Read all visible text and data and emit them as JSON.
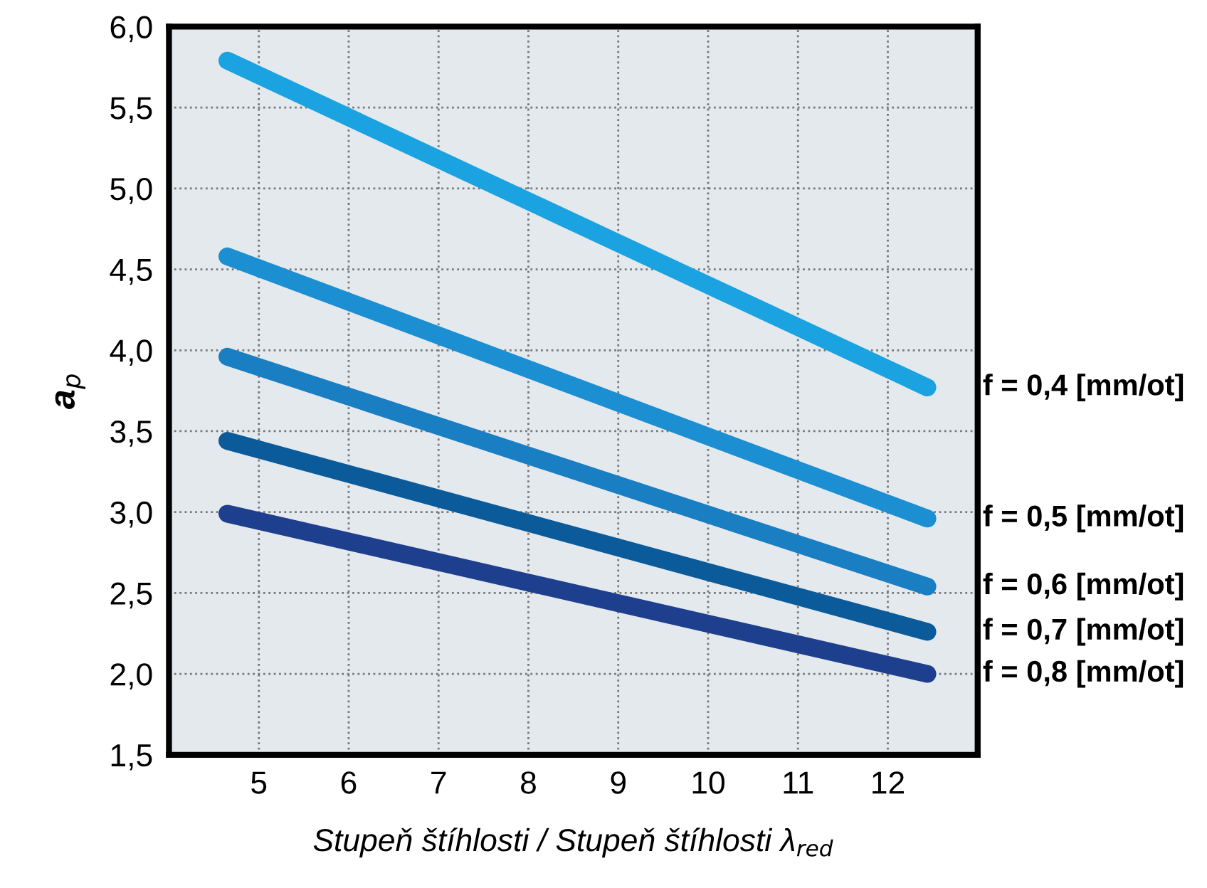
{
  "chart_data": {
    "type": "line",
    "xlabel": "Stupeň štíhlosti / Stupeň štíhlosti λ$_{red}$",
    "ylabel": "a$_{p}$",
    "xlim": [
      4,
      13
    ],
    "xticks": [
      5,
      6,
      7,
      8,
      9,
      10,
      11,
      12
    ],
    "ylim": [
      1.5,
      6.0
    ],
    "yticks": [
      {
        "value": 1.5,
        "label": "1,5"
      },
      {
        "value": 2.0,
        "label": "2,0"
      },
      {
        "value": 2.5,
        "label": "2,5"
      },
      {
        "value": 3.0,
        "label": "3,0"
      },
      {
        "value": 3.5,
        "label": "3,5"
      },
      {
        "value": 4.0,
        "label": "4,0"
      },
      {
        "value": 4.5,
        "label": "4,5"
      },
      {
        "value": 5.0,
        "label": "5,0"
      },
      {
        "value": 5.5,
        "label": "5,5"
      },
      {
        "value": 6.0,
        "label": "6,0"
      }
    ],
    "grid": true,
    "line_style": "solid",
    "x": [
      4.65,
      12.44
    ],
    "series": [
      {
        "name": "f = 0,4 [mm/ot]",
        "color": "#1aa3e0",
        "values": [
          5.79,
          3.77
        ]
      },
      {
        "name": "f = 0,5 [mm/ot]",
        "color": "#1b8fd2",
        "values": [
          4.58,
          2.96
        ]
      },
      {
        "name": "f = 0,6 [mm/ot]",
        "color": "#1a7ec3",
        "values": [
          3.96,
          2.54
        ]
      },
      {
        "name": "f = 0,7 [mm/ot]",
        "color": "#0b5a9a",
        "values": [
          3.44,
          2.26
        ]
      },
      {
        "name": "f = 0,8 [mm/ot]",
        "color": "#1d3f8e",
        "values": [
          2.99,
          2.0
        ]
      }
    ]
  }
}
